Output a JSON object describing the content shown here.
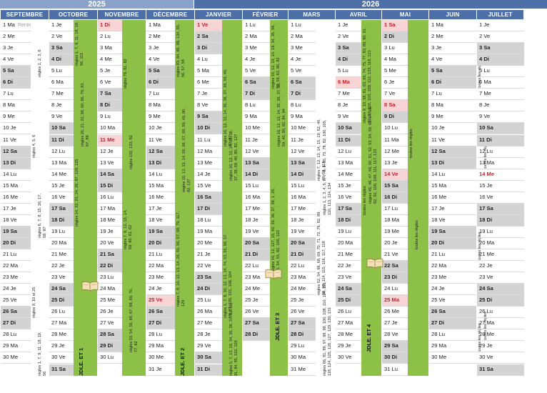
{
  "years": [
    "2025",
    "2026"
  ],
  "colors": {
    "green": "#8cc047",
    "header": "#4d6fa8",
    "weekend": "#d3d3d3",
    "holiday": "#f8d4d4",
    "holiday_text": "#c0262c"
  },
  "months": [
    {
      "name": "SEPTEMBRE",
      "first": 1,
      "len": 30,
      "hol": [],
      "annotations": [
        {
          "text": "Rentrée",
          "row": 1,
          "type": "sub"
        },
        {
          "text": "règles 1, 2, 3, 6",
          "row": 3,
          "rows": 3
        },
        {
          "text": "règles 4, 5, 6",
          "row": 9,
          "rows": 4
        },
        {
          "text": "règles 6, 7, 8, 15, 16, 17, 58, 97",
          "row": 16,
          "rows": 4
        },
        {
          "text": "règles 9, 10 et 25",
          "row": 23,
          "rows": 4
        },
        {
          "text": "règles 1, 7, 9, 11, 18, 19, 56",
          "row": 28,
          "rows": 4
        }
      ]
    },
    {
      "name": "OCTOBRE",
      "first": 3,
      "len": 31,
      "hol": [],
      "annotations": [
        {
          "text": "règles 1, 7, 9, 11, 18, 19, 56, 115",
          "row": 1,
          "rows": 4
        },
        {
          "text": "règles 20, 21, 22, 56, 60, 66, 79, 83, 87, 89",
          "row": 6,
          "rows": 6
        },
        {
          "text": "règles 14, 22, 23, 24, 26, 87, 129, 125",
          "row": 12,
          "rows": 7
        },
        {
          "text": "JDLE. ET 1",
          "row": 19,
          "rows": 13,
          "bold": true
        }
      ]
    },
    {
      "name": "NOVEMBRE",
      "first": 6,
      "len": 30,
      "hol": [
        1,
        11
      ],
      "annotations": [
        {
          "text": "règles 79, 81, 82",
          "row": 3,
          "rows": 4
        },
        {
          "text": "règles 132, 133, 82",
          "row": 10,
          "rows": 4
        },
        {
          "text": "règles 7, 8, 12, 15, 14, 59, 60, 61, 62",
          "row": 17,
          "rows": 4
        },
        {
          "text": "règles 53, 54, 55, 66, 67, 68, 69, 70, 77, 82",
          "row": 24,
          "rows": 6
        }
      ]
    },
    {
      "name": "DÉCEMBRE",
      "first": 1,
      "len": 31,
      "hol": [
        25
      ],
      "annotations": [
        {
          "text": "règles 83, 84, 85, 88, 134, 55, 56, 57, 58",
          "row": 1,
          "rows": 5
        },
        {
          "text": "règles 10, 12, 13, 14, 55, 56, 57, 58, 59, 40, 80, 82, 127",
          "row": 8,
          "rows": 8
        },
        {
          "text": "règles 7, 8, 10, 12, 13, 14, 26, 55, 56, 57, 58, 79, 117, 129",
          "row": 17,
          "rows": 9
        },
        {
          "text": "JDLE. ET 2",
          "row": 19,
          "rows": 13,
          "bold": true
        }
      ]
    },
    {
      "name": "JANVIER",
      "first": 4,
      "len": 31,
      "hol": [
        1
      ],
      "annotations": [
        {
          "text": "règles 10, 12, 13, 14, 35, 36, 37, 38, 59, 40, 80, 82",
          "row": 5,
          "rows": 7
        },
        {
          "text": "règles 10, 12, 13, 14, 35, 36, 37, 38, 59, 40, 80, 82, 127",
          "row": 10,
          "rows": 5
        },
        {
          "text": "règles 1, 7, 8, 10, 12, 13, 14, 74, 53, 55, 56, 57, 58, 97, 100, 101, 106, 104",
          "row": 19,
          "rows": 8
        },
        {
          "text": "règles 5, 7, 13, 19, 34, 35, 36, 37, 82, 88, 91, 94, 95, 102, 103",
          "row": 25,
          "rows": 7
        }
      ]
    },
    {
      "name": "FÉVRIER",
      "first": 0,
      "len": 28,
      "hol": [],
      "annotations": [
        {
          "text": "règles 10, 12, 13, 14, 19, 34, 35, 56, 57, 58, 63, 80, 82",
          "row": 1,
          "rows": 6
        },
        {
          "text": "règles 10, 12, 13, 14, 35, 36, 37, 38, 59, 40, 80, 82, 84, 94",
          "row": 6,
          "rows": 6
        },
        {
          "text": "règles 10, 12, 127, 15, 82, 35, 36, 37, 38, 1, 25, 26, 54, 55, 82, 100, 122",
          "row": 15,
          "rows": 8
        },
        {
          "text": "JDLE. ET 3",
          "row": 16,
          "rows": 13,
          "bold": true
        }
      ]
    },
    {
      "name": "MARS",
      "first": 0,
      "len": 31,
      "hol": [],
      "annotations": [
        {
          "text": "règles 7, 12, 13, 14, 15, 19, 52, 40, 48, 55, 115",
          "row": 9,
          "rows": 6
        },
        {
          "text": "règles 1, 2, 3, 4, 5, 6, 7, 8, 9, 55, 73, 78, 82, 100, 105, 110, 113, 114, 134",
          "row": 9,
          "rows": 9
        },
        {
          "text": "règles 52, 54, 66, 68, 69, 70, 71, 72, 76, 82, 89, 90, 98, 114, 115, 116, 117, 118",
          "row": 17,
          "rows": 8
        },
        {
          "text": "règles 66, 81, 89, 97, 98, 99, 100, 108, 110, 114, 115, 118, 124, 125, 126, 127, 129, 130, 131",
          "row": 23,
          "rows": 9
        }
      ]
    },
    {
      "name": "AVRIL",
      "first": 3,
      "len": 30,
      "hol": [
        6
      ],
      "annotations": [
        {
          "text": "règles 9, 10, 56, 61, 63, 65, 74, 75, 77, 83, 89, 90, 91, 92, 93, 102, 103, 109, 112, 133, 118, 121",
          "row": 1,
          "rows": 9
        },
        {
          "text": "règles 45, 46, 47, 49, 50, 51, 52, 53, 54, 59, 62, 64, 65, 82, 92, 100, 108, 111, 117, 123",
          "row": 8,
          "rows": 9
        },
        {
          "text": "toutes les règles",
          "row": 14,
          "rows": 4
        },
        {
          "text": "JDLE. ET 4",
          "row": 17,
          "rows": 13,
          "bold": true
        }
      ]
    },
    {
      "name": "MAI",
      "first": 5,
      "len": 31,
      "hol": [
        1,
        8,
        14,
        25
      ],
      "annotations": [
        {
          "text": "toutes les règles",
          "row": 9,
          "rows": 4
        },
        {
          "text": "toutes les règles",
          "row": 17,
          "rows": 4
        }
      ]
    },
    {
      "name": "JUIN",
      "first": 1,
      "len": 30,
      "hol": [],
      "annotations": [
        {
          "text": "toutes les règles",
          "row": 3,
          "rows": 4
        },
        {
          "text": "toutes les règles",
          "row": 10,
          "rows": 4
        },
        {
          "text": "toutes les règles",
          "row": 18,
          "rows": 4
        },
        {
          "text": "toutes les règles",
          "row": 25,
          "rows": 4
        },
        {
          "text": "toutes les règles",
          "row": 26,
          "rows": 4
        }
      ]
    },
    {
      "name": "JUILLET",
      "first": 3,
      "len": 31,
      "hol": [
        14
      ],
      "annotations": []
    }
  ],
  "day_abbr": [
    "Lu",
    "Ma",
    "Me",
    "Je",
    "Ve",
    "Sa",
    "Di"
  ]
}
